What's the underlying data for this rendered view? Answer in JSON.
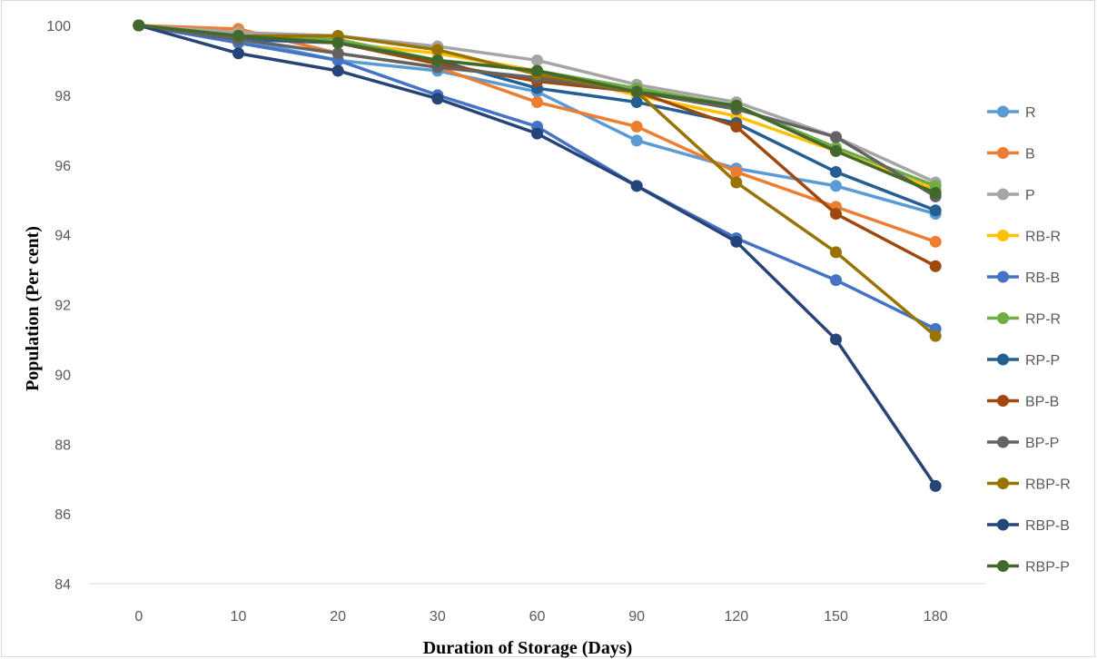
{
  "chart_data": {
    "type": "line",
    "title": "",
    "xlabel": "Duration of Storage (Days)",
    "ylabel": "Population (Per cent)",
    "categories": [
      "0",
      "10",
      "20",
      "30",
      "60",
      "90",
      "120",
      "150",
      "180"
    ],
    "ylim": [
      84,
      100
    ],
    "yticks": [
      84,
      86,
      88,
      90,
      92,
      94,
      96,
      98,
      100
    ],
    "grid": false,
    "legend_position": "right",
    "series": [
      {
        "name": "R",
        "color": "#5b9bd5",
        "values": [
          100,
          99.6,
          99.0,
          98.7,
          98.1,
          96.7,
          95.9,
          95.4,
          94.6
        ]
      },
      {
        "name": "B",
        "color": "#ed7d31",
        "values": [
          100,
          99.9,
          99.2,
          98.8,
          97.8,
          97.1,
          95.8,
          94.8,
          93.8
        ]
      },
      {
        "name": "P",
        "color": "#a5a5a5",
        "values": [
          100,
          99.8,
          99.7,
          99.4,
          99.0,
          98.3,
          97.8,
          96.8,
          95.5
        ]
      },
      {
        "name": "RB-R",
        "color": "#ffc000",
        "values": [
          100,
          99.7,
          99.5,
          99.2,
          98.7,
          98.0,
          97.4,
          96.4,
          95.3
        ]
      },
      {
        "name": "RB-B",
        "color": "#4472c4",
        "values": [
          100,
          99.5,
          99.0,
          98.0,
          97.1,
          95.4,
          93.9,
          92.7,
          91.3
        ]
      },
      {
        "name": "RP-R",
        "color": "#70ad47",
        "values": [
          100,
          99.7,
          99.6,
          99.0,
          98.7,
          98.2,
          97.7,
          96.5,
          95.4
        ]
      },
      {
        "name": "RP-P",
        "color": "#255e91",
        "values": [
          100,
          99.6,
          99.5,
          99.0,
          98.2,
          97.8,
          97.2,
          95.8,
          94.7
        ]
      },
      {
        "name": "BP-B",
        "color": "#9e480e",
        "values": [
          100,
          99.7,
          99.5,
          98.9,
          98.4,
          98.1,
          97.1,
          94.6,
          93.1
        ]
      },
      {
        "name": "BP-P",
        "color": "#636363",
        "values": [
          100,
          99.6,
          99.2,
          98.8,
          98.5,
          98.1,
          97.6,
          96.8,
          95.1
        ]
      },
      {
        "name": "RBP-R",
        "color": "#997300",
        "values": [
          100,
          99.7,
          99.7,
          99.3,
          98.6,
          98.1,
          95.5,
          93.5,
          91.1
        ]
      },
      {
        "name": "RBP-B",
        "color": "#264478",
        "values": [
          100,
          99.2,
          98.7,
          97.9,
          96.9,
          95.4,
          93.8,
          91.0,
          86.8
        ]
      },
      {
        "name": "RBP-P",
        "color": "#43682b",
        "values": [
          100,
          99.7,
          99.5,
          99.0,
          98.7,
          98.1,
          97.7,
          96.4,
          95.2
        ]
      }
    ]
  }
}
